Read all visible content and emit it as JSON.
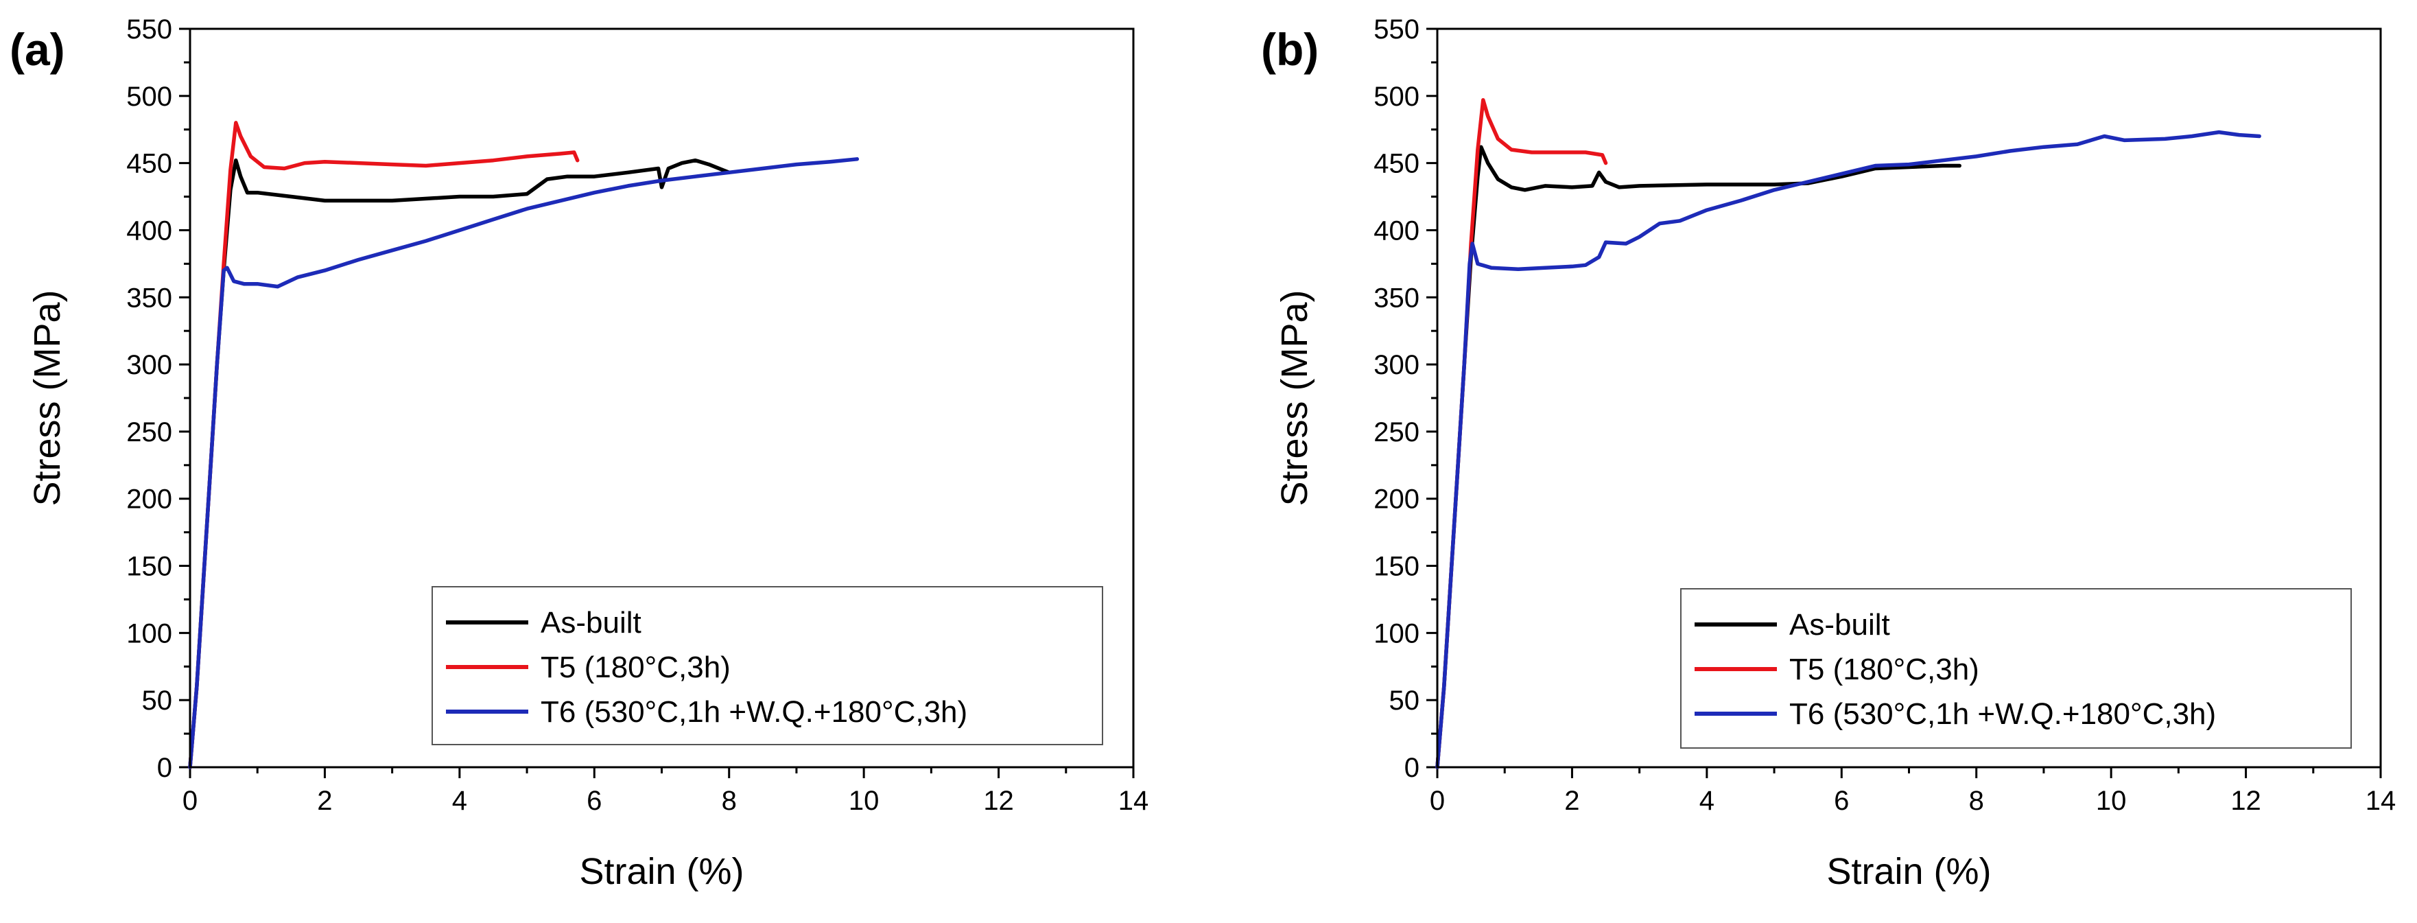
{
  "chart_data": [
    {
      "panel_label": "(a)",
      "type": "line",
      "title": "",
      "xlabel": "Strain (%)",
      "ylabel": "Stress (MPa)",
      "xlim": [
        0,
        14
      ],
      "ylim": [
        0,
        550
      ],
      "xticks": [
        0,
        2,
        4,
        6,
        8,
        10,
        12,
        14
      ],
      "yticks": [
        0,
        50,
        100,
        150,
        200,
        250,
        300,
        350,
        400,
        450,
        500,
        550
      ],
      "legend_position": "bottom-right",
      "series": [
        {
          "name": "As-built",
          "color": "#000000",
          "points": [
            [
              0,
              0
            ],
            [
              0.1,
              60
            ],
            [
              0.2,
              140
            ],
            [
              0.3,
              220
            ],
            [
              0.4,
              300
            ],
            [
              0.5,
              370
            ],
            [
              0.6,
              430
            ],
            [
              0.68,
              452
            ],
            [
              0.75,
              440
            ],
            [
              0.85,
              428
            ],
            [
              1.0,
              428
            ],
            [
              1.5,
              425
            ],
            [
              2.0,
              422
            ],
            [
              3.0,
              422
            ],
            [
              4.0,
              425
            ],
            [
              4.5,
              425
            ],
            [
              5.0,
              427
            ],
            [
              5.3,
              438
            ],
            [
              5.6,
              440
            ],
            [
              6.0,
              440
            ],
            [
              6.5,
              443
            ],
            [
              6.95,
              446
            ],
            [
              7.0,
              432
            ],
            [
              7.1,
              446
            ],
            [
              7.3,
              450
            ],
            [
              7.5,
              452
            ],
            [
              7.7,
              449
            ],
            [
              7.9,
              445
            ],
            [
              8.0,
              443
            ]
          ]
        },
        {
          "name": "T5 (180°C,3h)",
          "color": "#e8141b",
          "points": [
            [
              0,
              0
            ],
            [
              0.1,
              60
            ],
            [
              0.2,
              140
            ],
            [
              0.3,
              220
            ],
            [
              0.4,
              300
            ],
            [
              0.5,
              375
            ],
            [
              0.6,
              445
            ],
            [
              0.68,
              480
            ],
            [
              0.75,
              470
            ],
            [
              0.9,
              455
            ],
            [
              1.1,
              447
            ],
            [
              1.4,
              446
            ],
            [
              1.7,
              450
            ],
            [
              2.0,
              451
            ],
            [
              2.5,
              450
            ],
            [
              3.0,
              449
            ],
            [
              3.5,
              448
            ],
            [
              4.0,
              450
            ],
            [
              4.5,
              452
            ],
            [
              5.0,
              455
            ],
            [
              5.5,
              457
            ],
            [
              5.7,
              458
            ],
            [
              5.75,
              452
            ]
          ]
        },
        {
          "name": "T6 (530°C,1h +W.Q.+180°C,3h)",
          "color": "#1d2bb8",
          "points": [
            [
              0,
              0
            ],
            [
              0.1,
              60
            ],
            [
              0.2,
              140
            ],
            [
              0.3,
              220
            ],
            [
              0.4,
              300
            ],
            [
              0.5,
              370
            ],
            [
              0.55,
              372
            ],
            [
              0.65,
              362
            ],
            [
              0.8,
              360
            ],
            [
              1.0,
              360
            ],
            [
              1.3,
              358
            ],
            [
              1.6,
              365
            ],
            [
              2.0,
              370
            ],
            [
              2.5,
              378
            ],
            [
              3.0,
              385
            ],
            [
              3.5,
              392
            ],
            [
              4.0,
              400
            ],
            [
              4.5,
              408
            ],
            [
              5.0,
              416
            ],
            [
              5.5,
              422
            ],
            [
              6.0,
              428
            ],
            [
              6.5,
              433
            ],
            [
              7.0,
              437
            ],
            [
              7.5,
              440
            ],
            [
              8.0,
              443
            ],
            [
              8.5,
              446
            ],
            [
              9.0,
              449
            ],
            [
              9.5,
              451
            ],
            [
              9.9,
              453
            ]
          ]
        }
      ]
    },
    {
      "panel_label": "(b)",
      "type": "line",
      "title": "",
      "xlabel": "Strain (%)",
      "ylabel": "Stress (MPa)",
      "xlim": [
        0,
        14
      ],
      "ylim": [
        0,
        550
      ],
      "xticks": [
        0,
        2,
        4,
        6,
        8,
        10,
        12,
        14
      ],
      "yticks": [
        0,
        50,
        100,
        150,
        200,
        250,
        300,
        350,
        400,
        450,
        500,
        550
      ],
      "legend_position": "bottom-right",
      "series": [
        {
          "name": "As-built",
          "color": "#000000",
          "points": [
            [
              0,
              0
            ],
            [
              0.1,
              60
            ],
            [
              0.2,
              140
            ],
            [
              0.3,
              220
            ],
            [
              0.4,
              300
            ],
            [
              0.5,
              380
            ],
            [
              0.6,
              440
            ],
            [
              0.65,
              462
            ],
            [
              0.75,
              450
            ],
            [
              0.9,
              438
            ],
            [
              1.1,
              432
            ],
            [
              1.3,
              430
            ],
            [
              1.6,
              433
            ],
            [
              2.0,
              432
            ],
            [
              2.3,
              433
            ],
            [
              2.4,
              443
            ],
            [
              2.5,
              436
            ],
            [
              2.7,
              432
            ],
            [
              3.0,
              433
            ],
            [
              4.0,
              434
            ],
            [
              5.0,
              434
            ],
            [
              5.5,
              435
            ],
            [
              6.0,
              440
            ],
            [
              6.5,
              446
            ],
            [
              7.0,
              447
            ],
            [
              7.5,
              448
            ],
            [
              7.75,
              448
            ]
          ]
        },
        {
          "name": "T5 (180°C,3h)",
          "color": "#e8141b",
          "points": [
            [
              0,
              0
            ],
            [
              0.1,
              60
            ],
            [
              0.2,
              140
            ],
            [
              0.3,
              220
            ],
            [
              0.4,
              300
            ],
            [
              0.5,
              390
            ],
            [
              0.6,
              460
            ],
            [
              0.68,
              497
            ],
            [
              0.75,
              485
            ],
            [
              0.9,
              468
            ],
            [
              1.1,
              460
            ],
            [
              1.4,
              458
            ],
            [
              1.8,
              458
            ],
            [
              2.2,
              458
            ],
            [
              2.45,
              456
            ],
            [
              2.5,
              450
            ]
          ]
        },
        {
          "name": "T6 (530°C,1h +W.Q.+180°C,3h)",
          "color": "#1d2bb8",
          "points": [
            [
              0,
              0
            ],
            [
              0.1,
              60
            ],
            [
              0.2,
              140
            ],
            [
              0.3,
              220
            ],
            [
              0.4,
              300
            ],
            [
              0.48,
              375
            ],
            [
              0.52,
              390
            ],
            [
              0.6,
              375
            ],
            [
              0.8,
              372
            ],
            [
              1.2,
              371
            ],
            [
              1.6,
              372
            ],
            [
              2.0,
              373
            ],
            [
              2.2,
              374
            ],
            [
              2.4,
              380
            ],
            [
              2.5,
              391
            ],
            [
              2.8,
              390
            ],
            [
              3.0,
              395
            ],
            [
              3.3,
              405
            ],
            [
              3.6,
              407
            ],
            [
              4.0,
              415
            ],
            [
              4.5,
              422
            ],
            [
              5.0,
              430
            ],
            [
              5.5,
              436
            ],
            [
              6.0,
              442
            ],
            [
              6.5,
              448
            ],
            [
              7.0,
              449
            ],
            [
              7.5,
              452
            ],
            [
              8.0,
              455
            ],
            [
              8.5,
              459
            ],
            [
              9.0,
              462
            ],
            [
              9.5,
              464
            ],
            [
              9.9,
              470
            ],
            [
              10.2,
              467
            ],
            [
              10.8,
              468
            ],
            [
              11.2,
              470
            ],
            [
              11.6,
              473
            ],
            [
              11.9,
              471
            ],
            [
              12.2,
              470
            ]
          ]
        }
      ]
    }
  ]
}
